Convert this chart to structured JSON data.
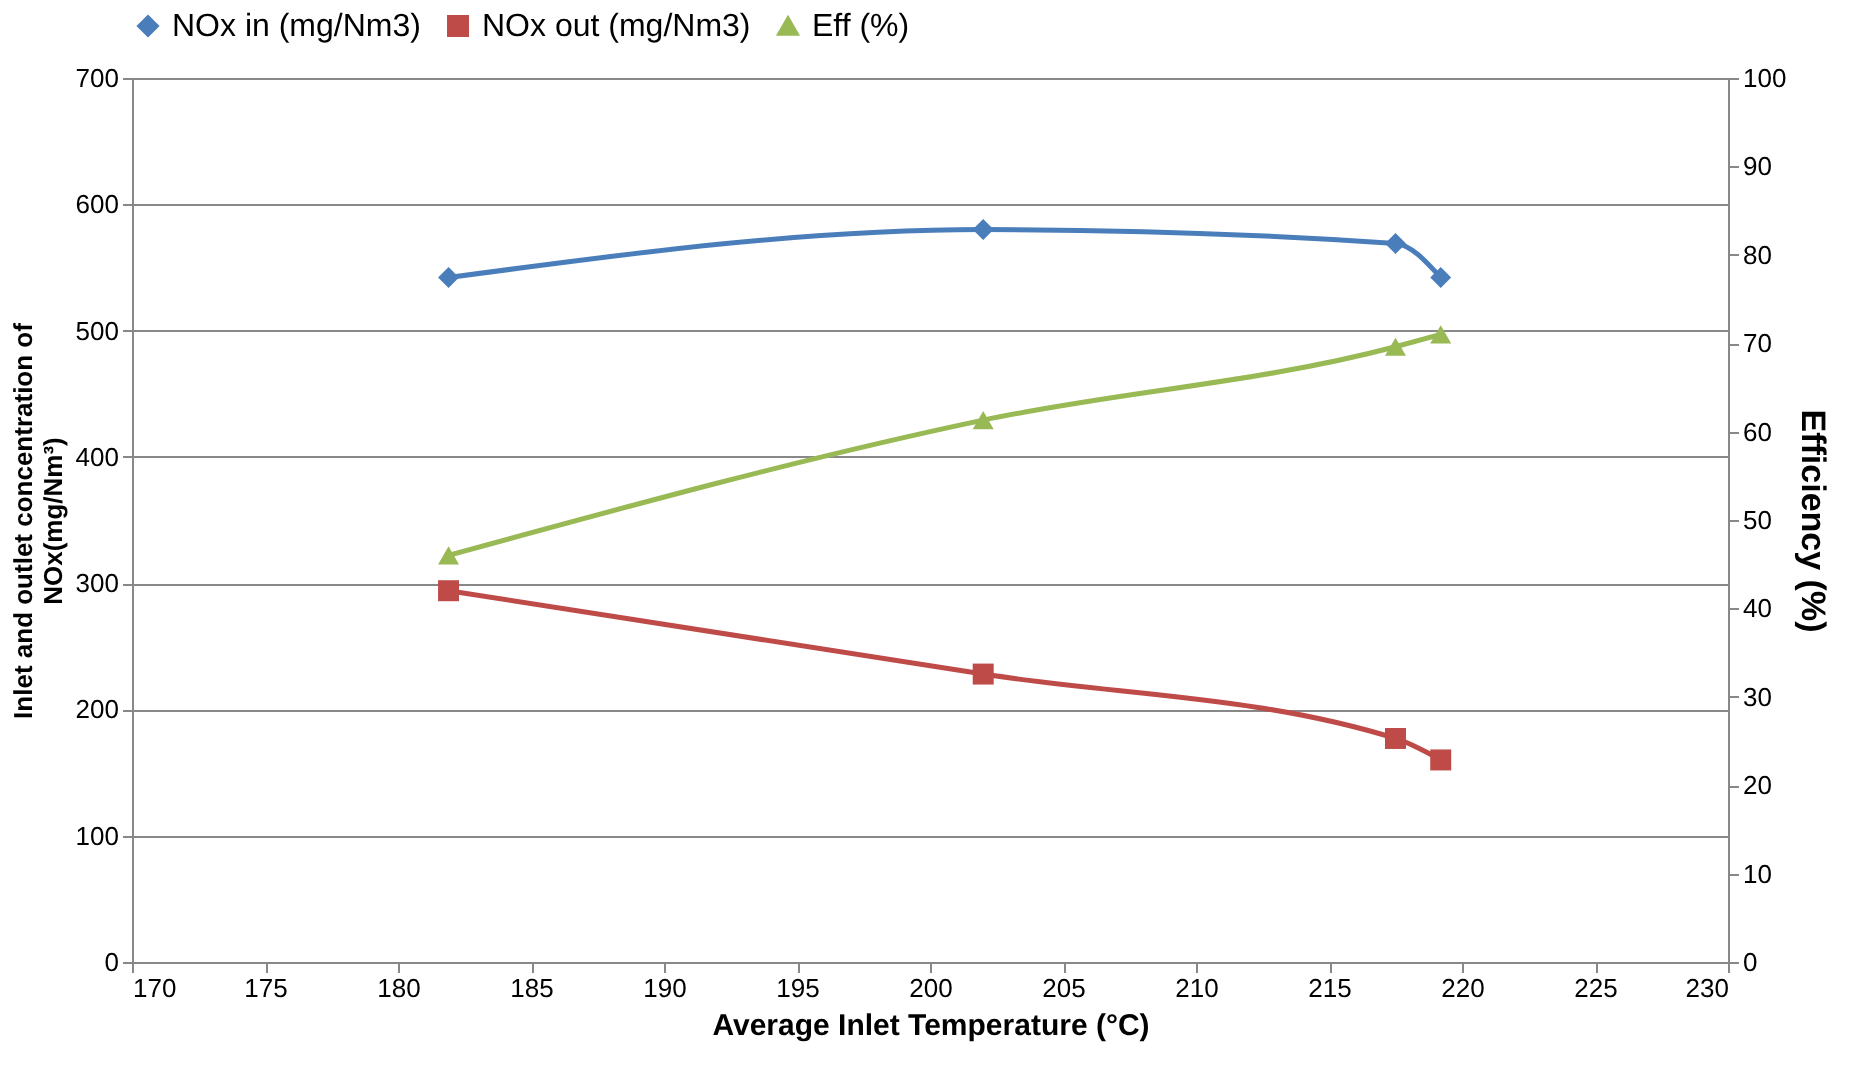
{
  "chart_data": {
    "type": "line",
    "xlabel": "Average Inlet Temperature (°C)",
    "ylabel": "Inlet and outlet concentration of\nNOx(mg/Nm³)",
    "y2label": "Efficiency (%)",
    "x": [
      181.9,
      202.0,
      217.5,
      219.2
    ],
    "series": [
      {
        "name": "NOx in (mg/Nm3)",
        "color": "#4a7ebb",
        "values": [
          542,
          580,
          569,
          542
        ],
        "marker": "diamond"
      },
      {
        "name": "NOx out (mg/Nm3)",
        "color": "#be4b48",
        "values": [
          294,
          228,
          177,
          160
        ],
        "marker": "square"
      },
      {
        "name": "Eff (%)",
        "color": "#98b954",
        "values": [
          46,
          61.3,
          69.6,
          71
        ],
        "marker": "triangle",
        "axis": "y2"
      }
    ],
    "xlim": [
      170,
      230
    ],
    "xticks": [
      170,
      175,
      180,
      185,
      190,
      195,
      200,
      205,
      210,
      215,
      220,
      225,
      230
    ],
    "ylim": [
      0,
      700
    ],
    "yticks": [
      0,
      100,
      200,
      300,
      400,
      500,
      600,
      700
    ],
    "y2lim": [
      0,
      100
    ],
    "y2ticks": [
      0,
      10,
      20,
      30,
      40,
      50,
      60,
      70,
      80,
      90,
      100
    ],
    "grid": "y",
    "legend": "top",
    "line_style": "solid"
  }
}
